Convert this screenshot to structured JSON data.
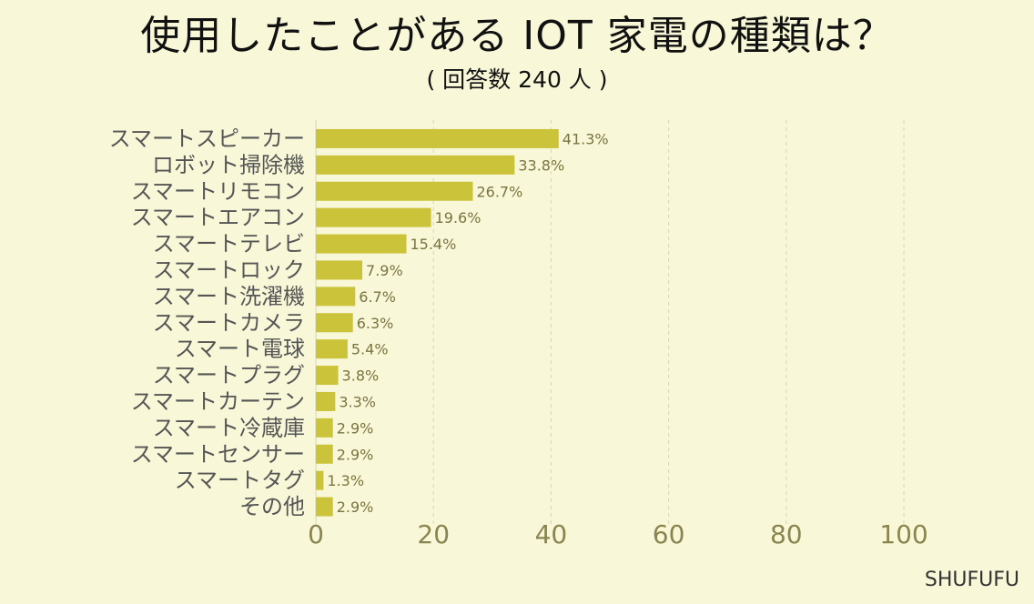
{
  "chart_data": {
    "type": "bar",
    "orientation": "horizontal",
    "title": "使用したことがある IOT 家電の種類は？",
    "subtitle": "( 回答数 240 人 )",
    "categories": [
      "スマートスピーカー",
      "ロボット掃除機",
      "スマートリモコン",
      "スマートエアコン",
      "スマートテレビ",
      "スマートロック",
      "スマート洗濯機",
      "スマートカメラ",
      "スマート電球",
      "スマートプラグ",
      "スマートカーテン",
      "スマート冷蔵庫",
      "スマートセンサー",
      "スマートタグ",
      "その他"
    ],
    "values": [
      41.3,
      33.8,
      26.7,
      19.6,
      15.4,
      7.9,
      6.7,
      6.3,
      5.4,
      3.8,
      3.3,
      2.9,
      2.9,
      1.3,
      2.9
    ],
    "value_labels": [
      "41.3%",
      "33.8%",
      "26.7%",
      "19.6%",
      "15.4%",
      "7.9%",
      "6.7%",
      "6.3%",
      "5.4%",
      "3.8%",
      "3.3%",
      "2.9%",
      "2.9%",
      "1.3%",
      "2.9%"
    ],
    "xlim": [
      0,
      100
    ],
    "xticks": [
      0,
      20,
      40,
      60,
      80,
      100
    ],
    "grid": true,
    "bar_color": "#cbc43a",
    "background_color": "#f8f7d8"
  },
  "brand": "SHUFUFU"
}
